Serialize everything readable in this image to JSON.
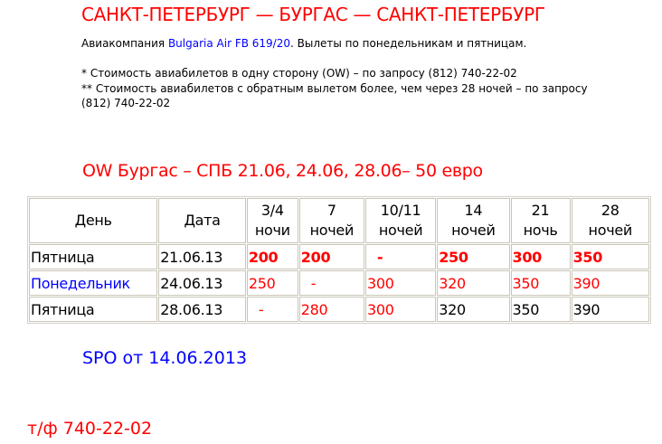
{
  "title": "САНКТ-ПЕТЕРБУРГ — БУРГАС — САНКТ-ПЕТЕРБУРГ",
  "info": {
    "airline_prefix": "Авиакомпания ",
    "airline_link": "Bulgaria Air FB 619/20",
    "airline_suffix": ". Вылеты по понедельникам и пятницам.",
    "note1": "* Стоимость авиабилетов в одну сторону (OW) – по запросу (812) 740-22-02",
    "note2": "** Стоимость авиабилетов с обратным вылетом более, чем через 28 ночей – по запросу",
    "note2_cont": "(812) 740-22-02"
  },
  "ow_heading": "OW Бургас – СПБ 21.06, 24.06, 28.06– 50 евро",
  "colors": {
    "red": "#ff0000",
    "blue": "#0000ff",
    "black": "#000000"
  },
  "table": {
    "headers": [
      {
        "line1": "День",
        "line2": ""
      },
      {
        "line1": "Дата",
        "line2": ""
      },
      {
        "line1": "3/4",
        "line2": "ночи"
      },
      {
        "line1": "7",
        "line2": "ночей"
      },
      {
        "line1": "10/11",
        "line2": "ночей"
      },
      {
        "line1": "14",
        "line2": "ночей"
      },
      {
        "line1": "21",
        "line2": "ночь"
      },
      {
        "line1": "28",
        "line2": "ночей"
      }
    ],
    "rows": [
      [
        {
          "v": "Пятница",
          "c": "black"
        },
        {
          "v": "21.06.13",
          "c": "black"
        },
        {
          "v": "200",
          "c": "red",
          "b": true
        },
        {
          "v": "200",
          "c": "red",
          "b": true
        },
        {
          "v": "-",
          "c": "red",
          "b": true
        },
        {
          "v": "250",
          "c": "red",
          "b": true
        },
        {
          "v": "300",
          "c": "red",
          "b": true
        },
        {
          "v": "350",
          "c": "red",
          "b": true
        }
      ],
      [
        {
          "v": "Понедельник",
          "c": "blue"
        },
        {
          "v": "24.06.13",
          "c": "black"
        },
        {
          "v": "250",
          "c": "red"
        },
        {
          "v": "-",
          "c": "red"
        },
        {
          "v": "300",
          "c": "red"
        },
        {
          "v": "320",
          "c": "red"
        },
        {
          "v": "350",
          "c": "red"
        },
        {
          "v": "390",
          "c": "red"
        }
      ],
      [
        {
          "v": "Пятница",
          "c": "black"
        },
        {
          "v": "28.06.13",
          "c": "black"
        },
        {
          "v": "-",
          "c": "red"
        },
        {
          "v": "280",
          "c": "red"
        },
        {
          "v": "300",
          "c": "red"
        },
        {
          "v": "320",
          "c": "black"
        },
        {
          "v": "350",
          "c": "black"
        },
        {
          "v": "390",
          "c": "black"
        }
      ]
    ]
  },
  "spo": "SPO от 14.06.2013",
  "phone": "т/ф 740-22-02"
}
